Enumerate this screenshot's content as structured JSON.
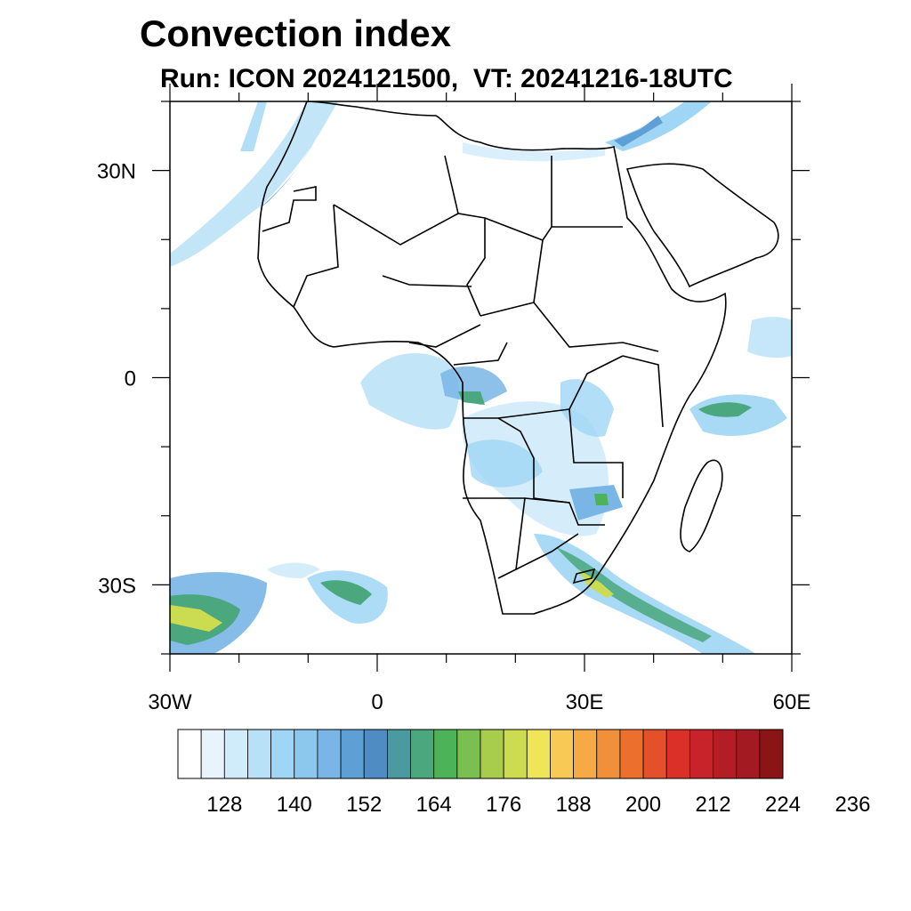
{
  "header": {
    "title": "Convection index",
    "subtitle": "Run: ICON 2024121500,  VT: 20241216-18UTC"
  },
  "map": {
    "lon_range": [
      -30,
      60
    ],
    "lat_range": [
      -40,
      40
    ],
    "lon_ticks": [
      {
        "lon": -30,
        "label": "30W"
      },
      {
        "lon": 0,
        "label": "0"
      },
      {
        "lon": 30,
        "label": "30E"
      },
      {
        "lon": 60,
        "label": "60E"
      }
    ],
    "lat_ticks": [
      {
        "lat": 30,
        "label": "30N"
      },
      {
        "lat": 0,
        "label": "0"
      },
      {
        "lat": -30,
        "label": "30S"
      }
    ],
    "line_color": "#000000"
  },
  "colorbar": {
    "labels": [
      "128",
      "140",
      "152",
      "164",
      "176",
      "188",
      "200",
      "212",
      "224",
      "236"
    ],
    "colors": [
      "#ffffff",
      "#e8f4fc",
      "#d0ebfa",
      "#b8e1f7",
      "#9fd6f5",
      "#8cc8ee",
      "#79b6e6",
      "#5e9fd5",
      "#4e8cc3",
      "#4a9aa0",
      "#4aa77e",
      "#4cb358",
      "#7abf50",
      "#a8cc4c",
      "#ccdc50",
      "#efe558",
      "#f8c954",
      "#f6aa46",
      "#f18f3a",
      "#ec6f2e",
      "#e4502a",
      "#da3028",
      "#c8222a",
      "#b41d26",
      "#a31a22",
      "#8b1414"
    ]
  }
}
